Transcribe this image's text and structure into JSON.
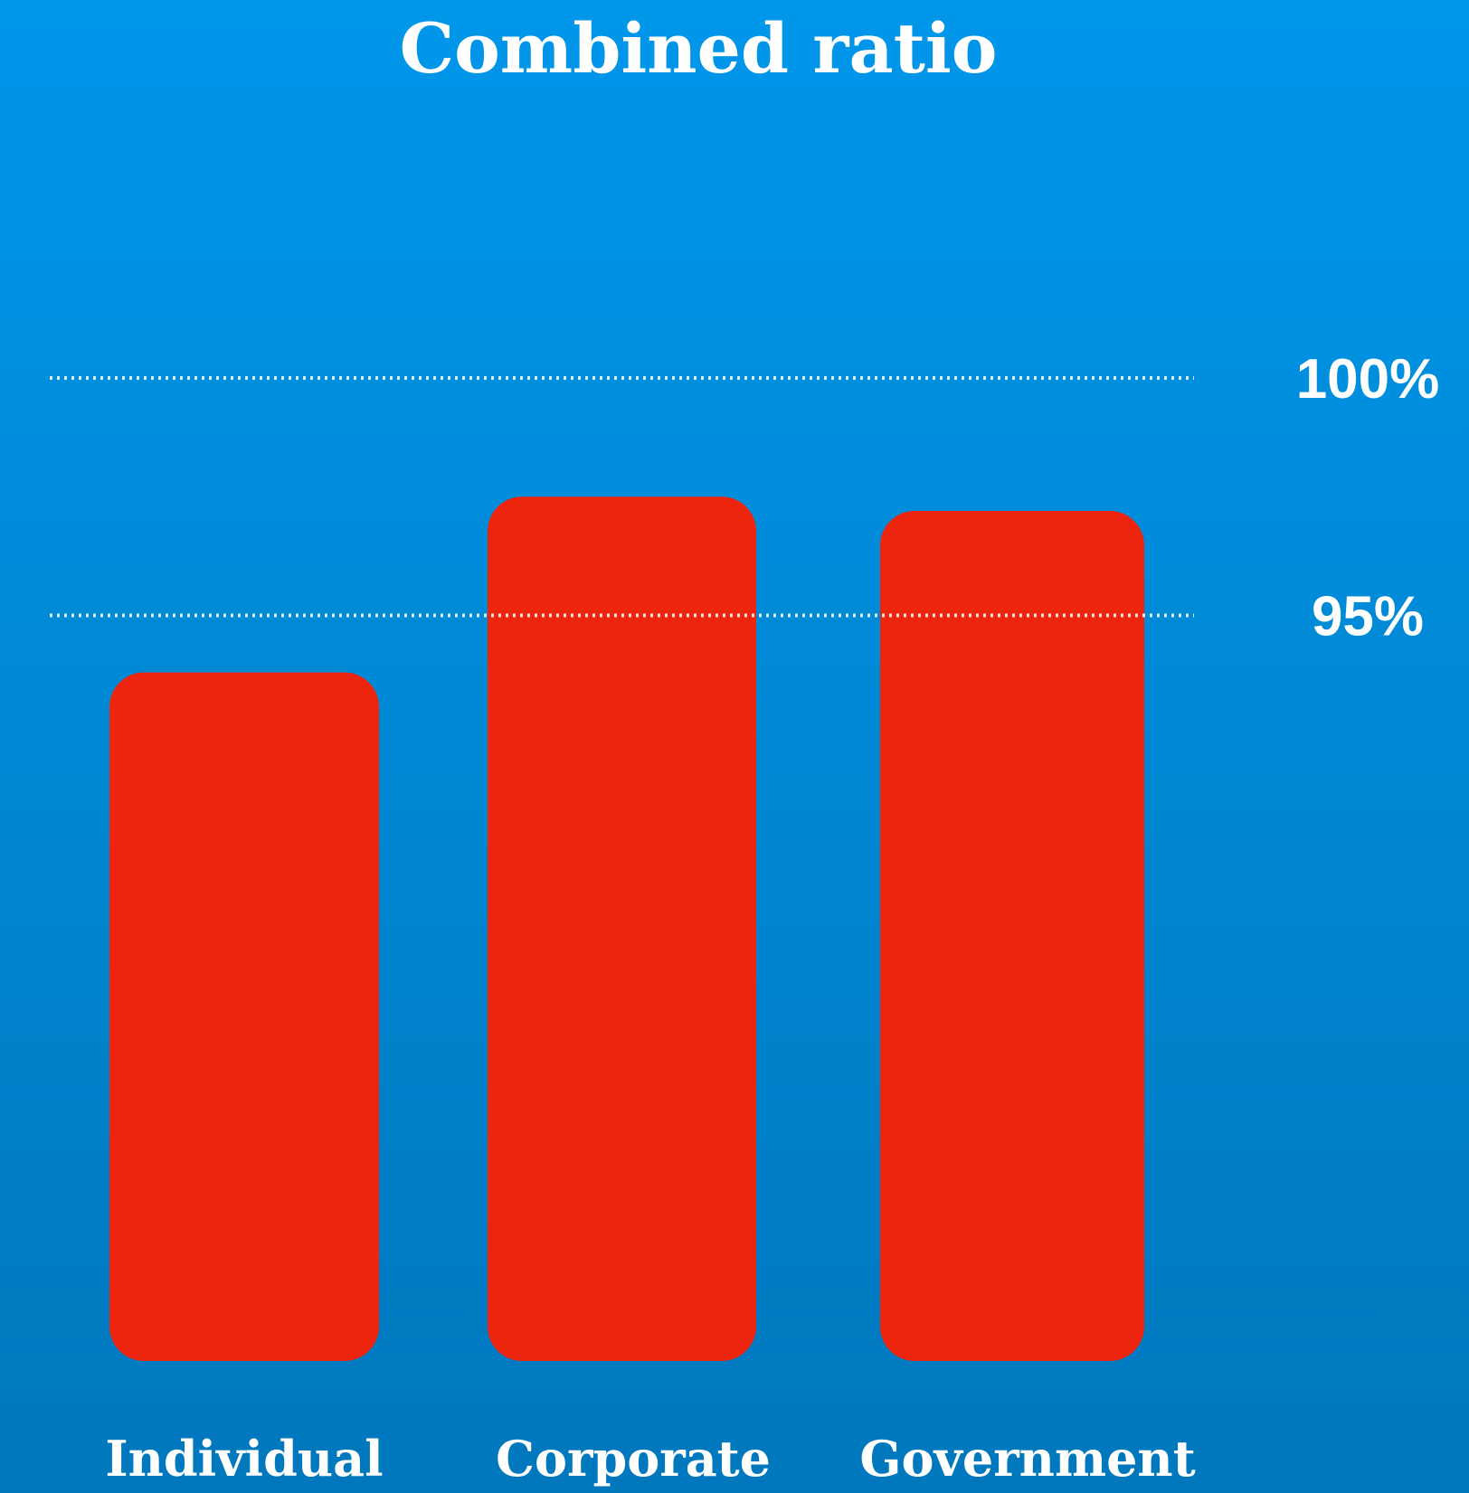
{
  "chart_data": {
    "type": "bar",
    "title": "Combined ratio",
    "xlabel": "",
    "ylabel": "",
    "categories": [
      "Individual",
      "Corporate",
      "Government"
    ],
    "values": [
      93.8,
      97.5,
      97.2
    ],
    "value_unit": "%",
    "ylim": [
      79.3,
      100
    ],
    "reference_lines": [
      {
        "value": 100,
        "label": "100%"
      },
      {
        "value": 95,
        "label": "95%"
      }
    ],
    "grid": false,
    "legend": "none",
    "colors": {
      "bar": "#ee250e",
      "background_top": "#0096ea",
      "background_bottom": "#0077bd",
      "text": "#ffffff"
    }
  }
}
